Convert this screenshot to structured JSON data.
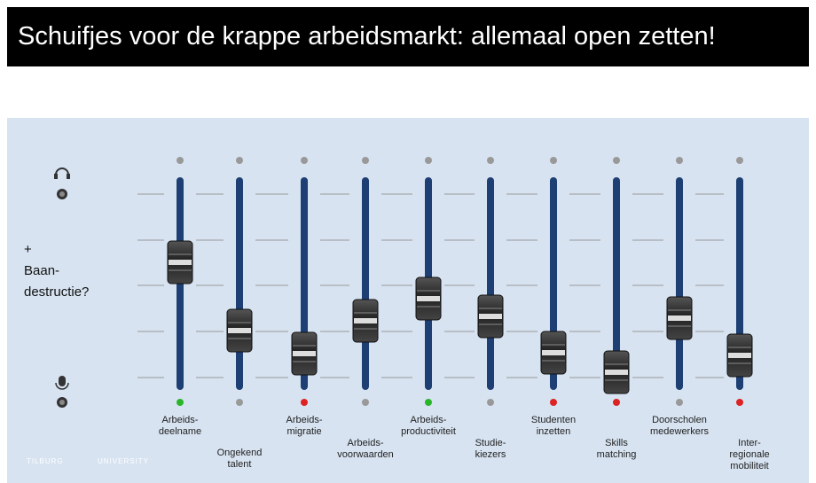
{
  "header": {
    "title": "Schuifjes voor de krappe arbeidsmarkt: allemaal open zetten!"
  },
  "side_note": {
    "plus": "+",
    "text": "Baan-\ndestructie?"
  },
  "sliders": [
    {
      "label": "Arbeids-\ndeelname"
    },
    {
      "label": "Ongekend\ntalent"
    },
    {
      "label": "Arbeids-\nmigratie"
    },
    {
      "label": "Arbeids-\nvoorwaarden"
    },
    {
      "label": "Arbeids-\nproductiviteit"
    },
    {
      "label": "Studie-\nkiezers"
    },
    {
      "label": "Studenten\ninzetten"
    },
    {
      "label": "Skills\nmatching"
    },
    {
      "label": "Doorscholen\nmedewerkers"
    },
    {
      "label": "Inter-\nregionale\nmobiliteit"
    }
  ],
  "footer": {
    "left": "TILBURG",
    "right": "UNIVERSITY"
  }
}
